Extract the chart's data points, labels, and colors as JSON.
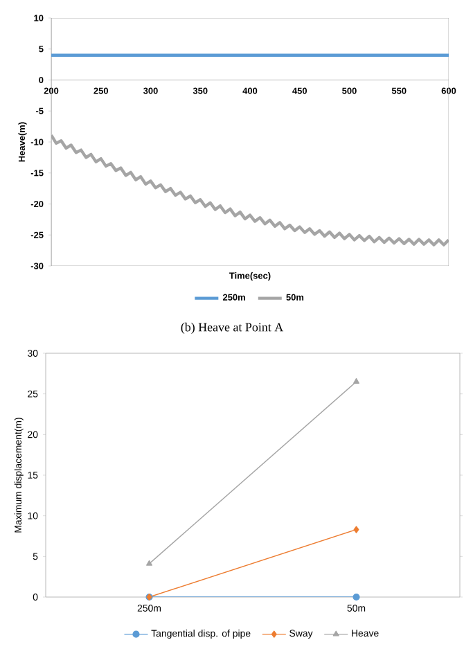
{
  "chart_data": [
    {
      "type": "line",
      "xlabel": "Time(sec)",
      "ylabel": "Heave(m)",
      "xlim": [
        200,
        600
      ],
      "ylim": [
        -30,
        10
      ],
      "xticks": [
        200,
        250,
        300,
        350,
        400,
        450,
        500,
        550,
        600
      ],
      "yticks": [
        -30,
        -25,
        -20,
        -15,
        -10,
        -5,
        0,
        5,
        10
      ],
      "grid": false,
      "legend": "bottom",
      "annotations": [
        "(b) Heave at Point A"
      ],
      "series": [
        {
          "name": "250m",
          "color": "#5b9bd5",
          "x": [
            200,
            600
          ],
          "values": [
            4,
            4
          ]
        },
        {
          "name": "50m",
          "color": "#a5a5a5",
          "x": [
            200,
            205,
            210,
            215,
            220,
            225,
            230,
            235,
            240,
            245,
            250,
            255,
            260,
            265,
            270,
            275,
            280,
            285,
            290,
            295,
            300,
            305,
            310,
            315,
            320,
            325,
            330,
            335,
            340,
            345,
            350,
            355,
            360,
            365,
            370,
            375,
            380,
            385,
            390,
            395,
            400,
            405,
            410,
            415,
            420,
            425,
            430,
            435,
            440,
            445,
            450,
            455,
            460,
            465,
            470,
            475,
            480,
            485,
            490,
            495,
            500,
            505,
            510,
            515,
            520,
            525,
            530,
            535,
            540,
            545,
            550,
            555,
            560,
            565,
            570,
            575,
            580,
            585,
            590,
            595,
            600
          ],
          "values": [
            -8.9,
            -10.2,
            -9.8,
            -11.0,
            -10.5,
            -11.7,
            -11.3,
            -12.5,
            -12.0,
            -13.2,
            -12.7,
            -13.9,
            -13.5,
            -14.6,
            -14.2,
            -15.4,
            -14.9,
            -16.1,
            -15.6,
            -16.8,
            -16.3,
            -17.4,
            -16.9,
            -18.0,
            -17.5,
            -18.6,
            -18.1,
            -19.2,
            -18.7,
            -19.8,
            -19.3,
            -20.4,
            -19.8,
            -20.9,
            -20.3,
            -21.4,
            -20.8,
            -21.9,
            -21.3,
            -22.4,
            -21.8,
            -22.8,
            -22.2,
            -23.2,
            -22.6,
            -23.6,
            -23.0,
            -24.0,
            -23.4,
            -24.3,
            -23.7,
            -24.6,
            -24.0,
            -24.9,
            -24.3,
            -25.2,
            -24.5,
            -25.4,
            -24.7,
            -25.6,
            -24.9,
            -25.8,
            -25.1,
            -25.9,
            -25.2,
            -26.1,
            -25.4,
            -26.2,
            -25.5,
            -26.3,
            -25.6,
            -26.4,
            -25.7,
            -26.5,
            -25.7,
            -26.5,
            -25.8,
            -26.6,
            -25.8,
            -26.6,
            -25.8
          ]
        }
      ]
    },
    {
      "type": "line",
      "categories": [
        "250m",
        "50m"
      ],
      "ylabel": "Maximum displacement(m)",
      "ylim": [
        0,
        30
      ],
      "yticks": [
        0,
        5,
        10,
        15,
        20,
        25,
        30
      ],
      "grid": false,
      "legend": "bottom",
      "series": [
        {
          "name": "Tangential disp. of pipe",
          "color": "#5b9bd5",
          "marker": "circle",
          "values": [
            0,
            0
          ]
        },
        {
          "name": "Sway",
          "color": "#ed7d31",
          "marker": "diamond",
          "values": [
            0,
            8.3
          ]
        },
        {
          "name": "Heave",
          "color": "#a5a5a5",
          "marker": "triangle",
          "values": [
            4.1,
            26.5
          ]
        }
      ]
    }
  ]
}
